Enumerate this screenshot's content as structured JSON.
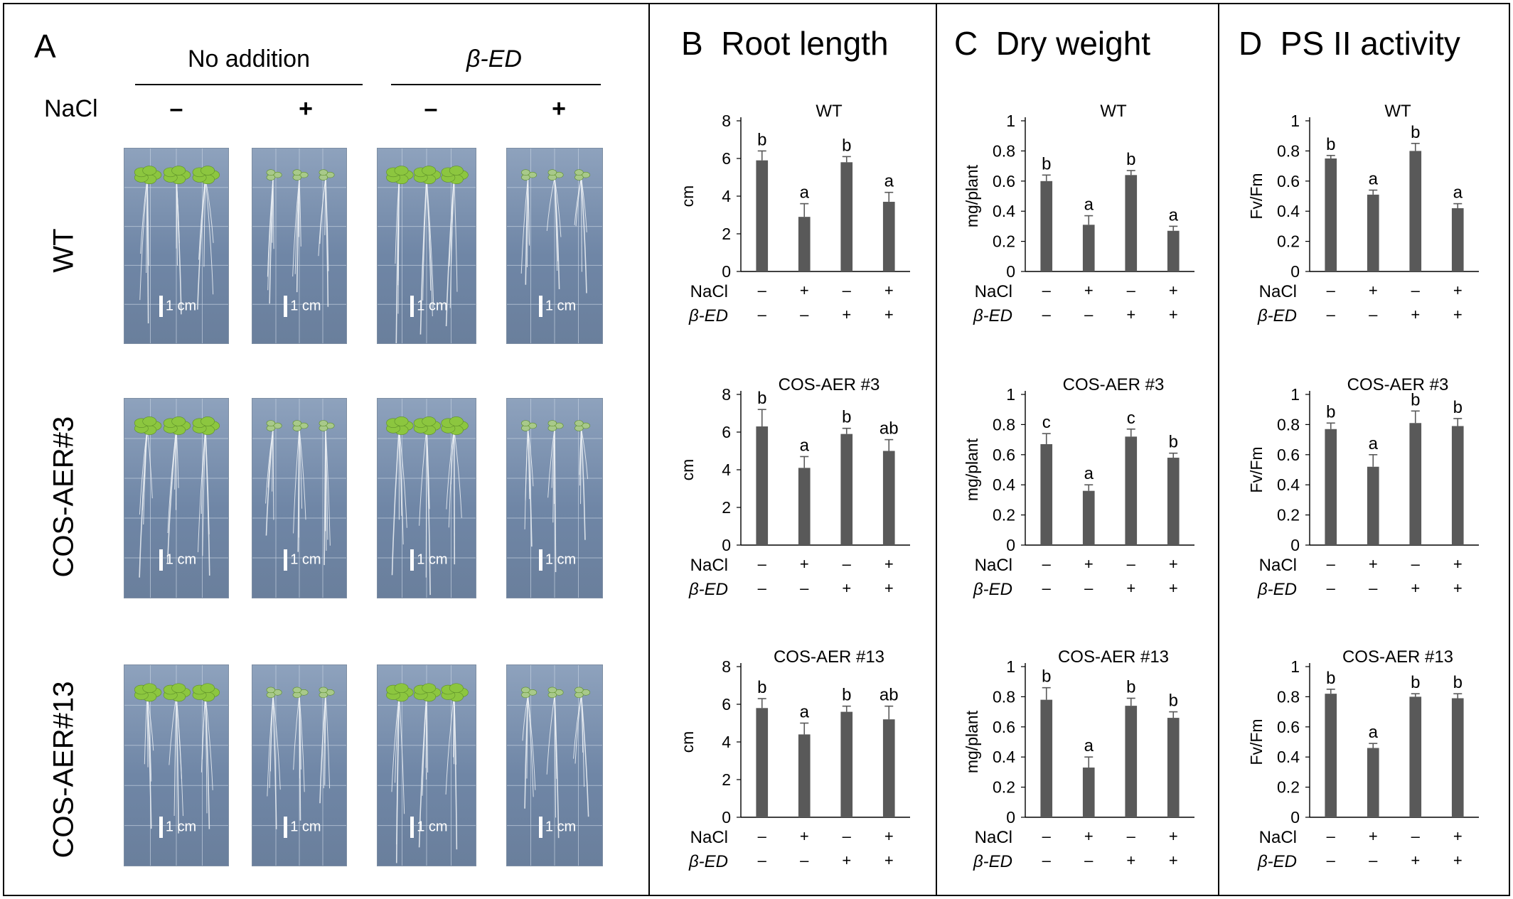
{
  "panels": {
    "A": {
      "letter": "A",
      "col_groups": [
        "No addition",
        "β-ED"
      ],
      "nacl_label": "NaCl",
      "nacl_signs": [
        "–",
        "+",
        "–",
        "+"
      ],
      "rows": [
        "WT",
        "COS-AER#3",
        "COS-AER#13"
      ],
      "scale_bar": "1 cm"
    },
    "B": {
      "letter": "B",
      "title": "Root length"
    },
    "C": {
      "letter": "C",
      "title": "Dry weight"
    },
    "D": {
      "letter": "D",
      "title": "PS II activity"
    }
  },
  "treatment_rows": {
    "nacl_label": "NaCl",
    "bed_label": "β-ED",
    "nacl": [
      "–",
      "+",
      "–",
      "+"
    ],
    "bed": [
      "–",
      "–",
      "+",
      "+"
    ]
  },
  "colors": {
    "bar": "#595959",
    "plate": "#7a8fae",
    "seedling": "#8cc63f"
  },
  "chart_data": [
    {
      "type": "bar",
      "panel": "B",
      "title": "WT",
      "ylabel": "cm",
      "ylim": [
        0,
        8
      ],
      "yticks": [
        "0",
        "2",
        "4",
        "6",
        "8"
      ],
      "values": [
        5.9,
        2.9,
        5.8,
        3.7
      ],
      "errors": [
        0.5,
        0.7,
        0.3,
        0.5
      ],
      "letters": [
        "b",
        "a",
        "b",
        "a"
      ]
    },
    {
      "type": "bar",
      "panel": "B",
      "title": "COS-AER #3",
      "ylabel": "cm",
      "ylim": [
        0,
        8
      ],
      "yticks": [
        "0",
        "2",
        "4",
        "6",
        "8"
      ],
      "values": [
        6.3,
        4.1,
        5.9,
        5.0
      ],
      "errors": [
        0.9,
        0.6,
        0.3,
        0.6
      ],
      "letters": [
        "b",
        "a",
        "b",
        "ab"
      ]
    },
    {
      "type": "bar",
      "panel": "B",
      "title": "COS-AER #13",
      "ylabel": "cm",
      "ylim": [
        0,
        8
      ],
      "yticks": [
        "0",
        "2",
        "4",
        "6",
        "8"
      ],
      "values": [
        5.8,
        4.4,
        5.6,
        5.2
      ],
      "errors": [
        0.5,
        0.6,
        0.3,
        0.7
      ],
      "letters": [
        "b",
        "a",
        "b",
        "ab"
      ]
    },
    {
      "type": "bar",
      "panel": "C",
      "title": "WT",
      "ylabel": "mg/plant",
      "ylim": [
        0,
        1
      ],
      "yticks": [
        "0",
        "0.2",
        "0.4",
        "0.6",
        "0.8",
        "1"
      ],
      "values": [
        0.6,
        0.31,
        0.64,
        0.27
      ],
      "errors": [
        0.04,
        0.06,
        0.03,
        0.03
      ],
      "letters": [
        "b",
        "a",
        "b",
        "a"
      ]
    },
    {
      "type": "bar",
      "panel": "C",
      "title": "COS-AER  #3",
      "ylabel": "mg/plant",
      "ylim": [
        0,
        1
      ],
      "yticks": [
        "0",
        "0.2",
        "0.4",
        "0.6",
        "0.8",
        "1"
      ],
      "values": [
        0.67,
        0.36,
        0.72,
        0.58
      ],
      "errors": [
        0.07,
        0.04,
        0.05,
        0.03
      ],
      "letters": [
        "c",
        "a",
        "c",
        "b"
      ]
    },
    {
      "type": "bar",
      "panel": "C",
      "title": "COS-AER #13",
      "ylabel": "mg/plant",
      "ylim": [
        0,
        1
      ],
      "yticks": [
        "0",
        "0.2",
        "0.4",
        "0.6",
        "0.8",
        "1"
      ],
      "values": [
        0.78,
        0.33,
        0.74,
        0.66
      ],
      "errors": [
        0.08,
        0.07,
        0.05,
        0.04
      ],
      "letters": [
        "b",
        "a",
        "b",
        "b"
      ]
    },
    {
      "type": "bar",
      "panel": "D",
      "title": "WT",
      "ylabel": "Fv/Fm",
      "ylim": [
        0,
        1
      ],
      "yticks": [
        "0",
        "0.2",
        "0.4",
        "0.6",
        "0.8",
        "1"
      ],
      "values": [
        0.75,
        0.51,
        0.8,
        0.42
      ],
      "errors": [
        0.02,
        0.03,
        0.05,
        0.03
      ],
      "letters": [
        "b",
        "a",
        "b",
        "a"
      ]
    },
    {
      "type": "bar",
      "panel": "D",
      "title": "COS-AER #3",
      "ylabel": "Fv/Fm",
      "ylim": [
        0,
        1
      ],
      "yticks": [
        "0",
        "0.2",
        "0.4",
        "0.6",
        "0.8",
        "1"
      ],
      "values": [
        0.77,
        0.52,
        0.81,
        0.79
      ],
      "errors": [
        0.04,
        0.08,
        0.08,
        0.05
      ],
      "letters": [
        "b",
        "a",
        "b",
        "b"
      ]
    },
    {
      "type": "bar",
      "panel": "D",
      "title": "COS-AER #13",
      "ylabel": "Fv/Fm",
      "ylim": [
        0,
        1
      ],
      "yticks": [
        "0",
        "0.2",
        "0.4",
        "0.6",
        "0.8",
        "1"
      ],
      "values": [
        0.82,
        0.46,
        0.8,
        0.79
      ],
      "errors": [
        0.03,
        0.03,
        0.02,
        0.03
      ],
      "letters": [
        "b",
        "a",
        "b",
        "b"
      ]
    }
  ]
}
